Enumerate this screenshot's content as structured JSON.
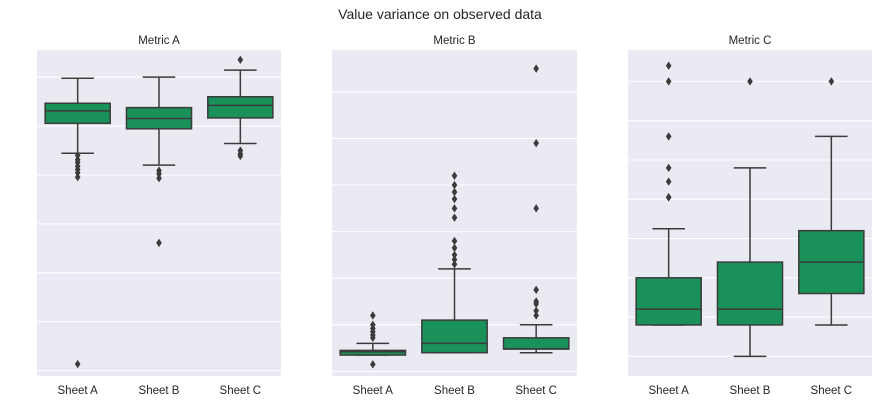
{
  "title": "Value variance on observed data",
  "colors": {
    "box": "#1a915a",
    "edge": "#3b3b3b",
    "panel_bg": "#eaeaf2",
    "grid": "#ffffff"
  },
  "chart_data": [
    {
      "type": "box",
      "title": "Metric A",
      "xlabel": "",
      "ylabel": "",
      "grid": true,
      "categories": [
        "Sheet A",
        "Sheet B",
        "Sheet C"
      ],
      "ylim": [
        -1,
        59
      ],
      "gridlines": [
        0,
        9,
        18,
        27,
        36,
        45,
        54
      ],
      "boxes": [
        {
          "whislo": 40.0,
          "q1": 45.5,
          "med": 47.8,
          "q3": 49.2,
          "whishi": 53.8,
          "fliers": [
            39.6,
            38.8,
            38.3,
            37.6,
            37.0,
            36.4,
            35.6,
            1.2
          ]
        },
        {
          "whislo": 37.8,
          "q1": 44.5,
          "med": 46.4,
          "q3": 48.4,
          "whishi": 54.0,
          "fliers": [
            36.8,
            36.2,
            35.4,
            23.5
          ]
        },
        {
          "whislo": 41.8,
          "q1": 46.5,
          "med": 48.8,
          "q3": 50.4,
          "whishi": 55.3,
          "fliers": [
            40.5,
            39.9,
            39.5,
            57.2
          ]
        }
      ]
    },
    {
      "type": "box",
      "title": "Metric B",
      "xlabel": "",
      "ylabel": "",
      "grid": true,
      "categories": [
        "Sheet A",
        "Sheet B",
        "Sheet C"
      ],
      "ylim": [
        -1,
        69
      ],
      "gridlines": [
        0,
        10,
        20,
        30,
        40,
        50,
        60
      ],
      "boxes": [
        {
          "whislo": 3.5,
          "q1": 3.5,
          "med": 4.2,
          "q3": 4.5,
          "whishi": 6.0,
          "fliers": [
            7.2,
            7.8,
            8.5,
            9.2,
            10.0,
            12.0,
            1.5
          ]
        },
        {
          "whislo": 4.0,
          "q1": 4.0,
          "med": 6.0,
          "q3": 11.0,
          "whishi": 22.0,
          "fliers": [
            23.0,
            24.0,
            25.0,
            26.5,
            28.0,
            33.0,
            35.0,
            37.0,
            38.5,
            40.0,
            42.0
          ]
        },
        {
          "whislo": 4.0,
          "q1": 4.8,
          "med": 4.8,
          "q3": 7.2,
          "whishi": 10.0,
          "fliers": [
            12.0,
            13.0,
            14.5,
            15.0,
            17.5,
            35.0,
            49.0,
            65.0
          ]
        }
      ]
    },
    {
      "type": "box",
      "title": "Metric C",
      "xlabel": "",
      "ylabel": "",
      "grid": true,
      "categories": [
        "Sheet A",
        "Sheet B",
        "Sheet C"
      ],
      "ylim": [
        -1,
        82
      ],
      "gridlines": [
        4,
        14,
        24,
        34,
        44,
        54,
        64,
        74
      ],
      "boxes": [
        {
          "whislo": 12.0,
          "q1": 12.0,
          "med": 16.0,
          "q3": 24.0,
          "whishi": 36.5,
          "fliers": [
            44.5,
            44.5,
            48.5,
            52.0,
            60.0,
            74.0,
            78.0
          ]
        },
        {
          "whislo": 4.0,
          "q1": 12.0,
          "med": 16.0,
          "q3": 28.0,
          "whishi": 52.0,
          "fliers": [
            74.0
          ]
        },
        {
          "whislo": 12.0,
          "q1": 20.0,
          "med": 28.0,
          "q3": 36.0,
          "whishi": 60.0,
          "fliers": [
            74.0
          ]
        }
      ]
    }
  ]
}
